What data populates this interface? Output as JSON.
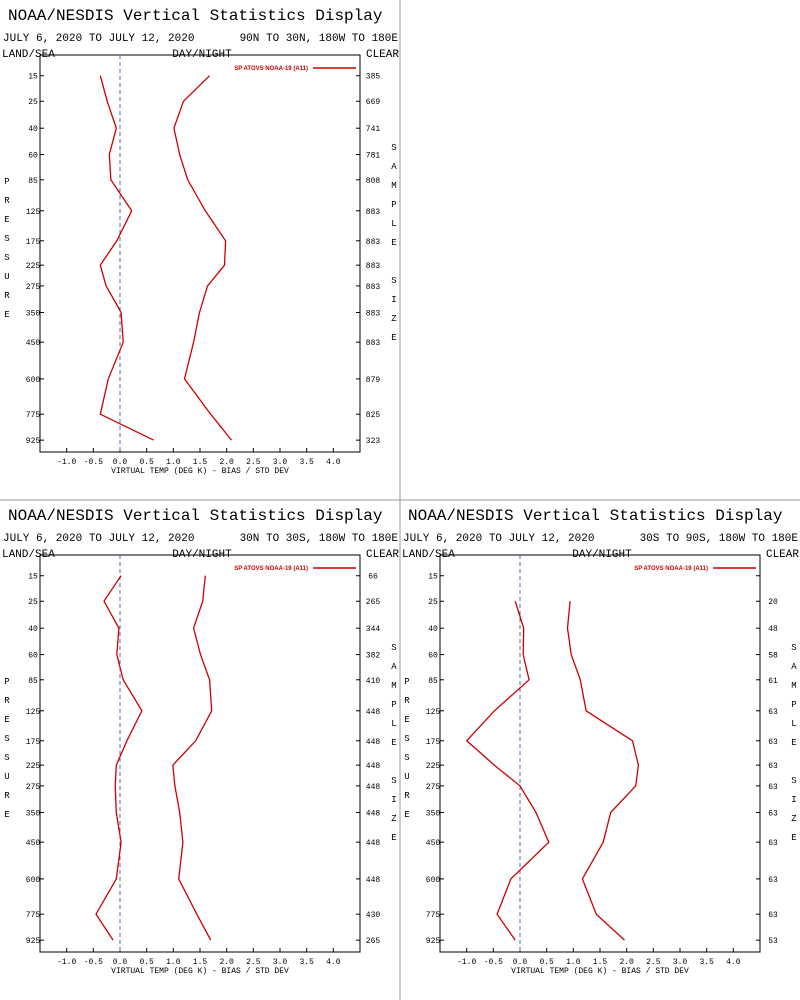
{
  "chart_data": [
    {
      "type": "line",
      "title": "NOAA/NESDIS Vertical Statistics Display",
      "subtitle": "JULY 6, 2020 TO JULY 12, 2020",
      "region": "90N TO 30N, 180W TO 180E",
      "header_left": "LAND/SEA",
      "header_center": "DAY/NIGHT",
      "header_right": "CLEAR",
      "xlabel": "VIRTUAL TEMP (DEG K) - BIAS / STD DEV",
      "ylabel": "PRESSURE",
      "y2label": "SAMPLE SIZE",
      "legend": "upper right",
      "xlim": [
        -1.5,
        4.5
      ],
      "xticks": [
        {
          "value": -1,
          "label": "-1.0"
        },
        -0.5,
        {
          "value": 0,
          "label": "0.0"
        },
        0.5,
        {
          "value": 1,
          "label": "1.0"
        },
        1.5,
        {
          "value": 2,
          "label": "2.0"
        },
        2.5,
        {
          "value": 3,
          "label": "3.0"
        },
        3.5,
        {
          "value": 4,
          "label": "4.0"
        }
      ],
      "ylim": [
        10,
        1000
      ],
      "yticks": [
        15,
        25,
        40,
        60,
        85,
        125,
        175,
        225,
        275,
        350,
        450,
        600,
        775,
        925
      ],
      "sample_size": [
        385,
        669,
        741,
        781,
        808,
        883,
        883,
        883,
        883,
        883,
        883,
        879,
        825,
        323
      ],
      "series": [
        {
          "name": "SP ATOVS NOAA-19 (A11)",
          "color": "#cc0000",
          "bias": [
            -0.37,
            -0.24,
            -0.07,
            -0.2,
            -0.17,
            0.22,
            -0.06,
            -0.37,
            -0.26,
            0.02,
            0.06,
            -0.22,
            -0.37,
            0.63
          ],
          "std_dev": [
            1.68,
            1.19,
            1.01,
            1.12,
            1.27,
            1.6,
            1.98,
            1.96,
            1.64,
            1.49,
            1.38,
            1.21,
            1.7,
            2.09
          ]
        }
      ]
    },
    {
      "type": "line",
      "title": "NOAA/NESDIS Vertical Statistics Display",
      "subtitle": "JULY 6, 2020 TO JULY 12, 2020",
      "region": "30N TO 30S, 180W TO 180E",
      "header_left": "LAND/SEA",
      "header_center": "DAY/NIGHT",
      "header_right": "CLEAR",
      "xlabel": "VIRTUAL TEMP (DEG K) - BIAS / STD DEV",
      "ylabel": "PRESSURE",
      "y2label": "SAMPLE SIZE",
      "legend": "upper right",
      "xlim": [
        -1.5,
        4.5
      ],
      "xticks": [
        {
          "value": -1,
          "label": "-1.0"
        },
        -0.5,
        {
          "value": 0,
          "label": "0.0"
        },
        0.5,
        {
          "value": 1,
          "label": "1.0"
        },
        1.5,
        {
          "value": 2,
          "label": "2.0"
        },
        2.5,
        {
          "value": 3,
          "label": "3.0"
        },
        3.5,
        {
          "value": 4,
          "label": "4.0"
        }
      ],
      "ylim": [
        10,
        1000
      ],
      "yticks": [
        15,
        25,
        40,
        60,
        85,
        125,
        175,
        225,
        275,
        350,
        450,
        600,
        775,
        925
      ],
      "sample_size": [
        66,
        265,
        344,
        382,
        410,
        448,
        448,
        448,
        448,
        448,
        448,
        448,
        430,
        265
      ],
      "series": [
        {
          "name": "SP ATOVS NOAA-19 (A11)",
          "color": "#cc0000",
          "bias": [
            0.02,
            -0.3,
            -0.02,
            -0.06,
            0.06,
            0.41,
            0.13,
            -0.07,
            -0.09,
            -0.07,
            0.02,
            -0.07,
            -0.45,
            -0.13
          ],
          "std_dev": [
            1.6,
            1.55,
            1.38,
            1.51,
            1.68,
            1.72,
            1.42,
            0.99,
            1.03,
            1.12,
            1.18,
            1.1,
            1.44,
            1.7
          ]
        }
      ]
    },
    {
      "type": "line",
      "title": "NOAA/NESDIS Vertical Statistics Display",
      "subtitle": "JULY 6, 2020 TO JULY 12, 2020",
      "region": "30S TO 90S, 180W TO 180E",
      "header_left": "LAND/SEA",
      "header_center": "DAY/NIGHT",
      "header_right": "CLEAR",
      "xlabel": "VIRTUAL TEMP (DEG K) - BIAS / STD DEV",
      "ylabel": "PRESSURE",
      "y2label": "SAMPLE SIZE",
      "legend": "upper right",
      "xlim": [
        -1.5,
        4.5
      ],
      "xticks": [
        {
          "value": -1,
          "label": "-1.0"
        },
        -0.5,
        {
          "value": 0,
          "label": "0.0"
        },
        0.5,
        {
          "value": 1,
          "label": "1.0"
        },
        1.5,
        {
          "value": 2,
          "label": "2.0"
        },
        2.5,
        {
          "value": 3,
          "label": "3.0"
        },
        3.5,
        {
          "value": 4,
          "label": "4.0"
        }
      ],
      "ylim": [
        10,
        1000
      ],
      "yticks": [
        15,
        25,
        40,
        60,
        85,
        125,
        175,
        225,
        275,
        350,
        450,
        600,
        775,
        925
      ],
      "sample_size": [
        null,
        20,
        48,
        58,
        61,
        63,
        63,
        63,
        63,
        63,
        63,
        63,
        63,
        53
      ],
      "series": [
        {
          "name": "SP ATOVS NOAA-19 (A11)",
          "color": "#cc0000",
          "bias": [
            null,
            -0.09,
            0.07,
            0.06,
            0.17,
            -0.48,
            -1.0,
            -0.48,
            0.0,
            0.3,
            0.54,
            -0.17,
            -0.43,
            -0.09
          ],
          "std_dev": [
            null,
            0.94,
            0.89,
            0.96,
            1.13,
            1.24,
            2.11,
            2.22,
            2.17,
            1.7,
            1.56,
            1.17,
            1.43,
            1.96
          ]
        }
      ]
    }
  ]
}
